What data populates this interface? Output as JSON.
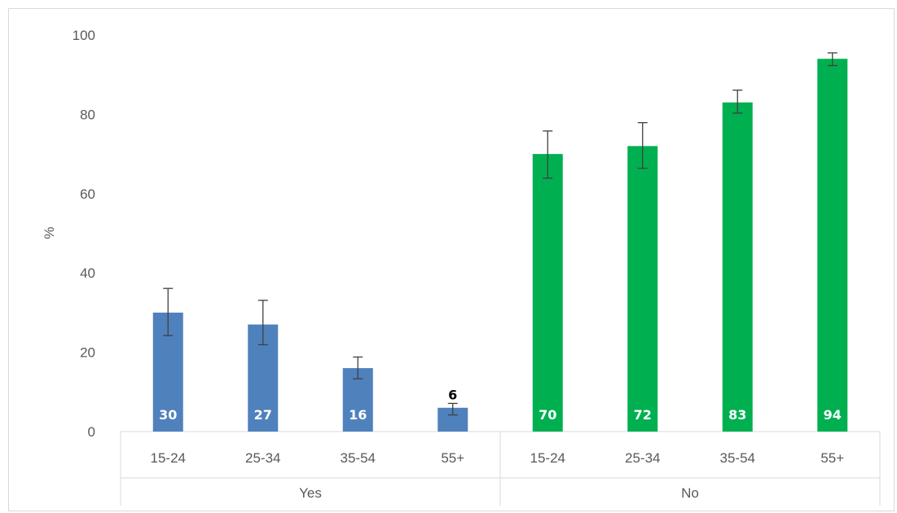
{
  "chart_data": {
    "type": "bar",
    "title": "",
    "xlabel": "",
    "ylabel": "%",
    "ylim": [
      0,
      100
    ],
    "yticks": [
      0,
      20,
      40,
      60,
      80,
      100
    ],
    "grid": false,
    "groups": [
      {
        "name": "Yes",
        "color": "#4f81bd",
        "categories": [
          "15-24",
          "25-34",
          "35-54",
          "55+"
        ],
        "values": [
          30,
          27,
          16,
          6
        ],
        "error_low": [
          24.2,
          21.9,
          13.3,
          4.2
        ],
        "error_high": [
          36.1,
          33.1,
          18.8,
          7.1
        ],
        "label_color": [
          "#ffffff",
          "#ffffff",
          "#ffffff",
          "#000000"
        ],
        "label_position": [
          "inside-base",
          "inside-base",
          "inside-base",
          "above"
        ]
      },
      {
        "name": "No",
        "color": "#00b050",
        "categories": [
          "15-24",
          "25-34",
          "35-54",
          "55+"
        ],
        "values": [
          70,
          72,
          83,
          94
        ],
        "error_low": [
          63.9,
          66.4,
          80.3,
          92.3
        ],
        "error_high": [
          75.8,
          77.9,
          86.1,
          95.5
        ],
        "label_color": [
          "#ffffff",
          "#ffffff",
          "#ffffff",
          "#ffffff"
        ],
        "label_position": [
          "inside-base",
          "inside-base",
          "inside-base",
          "inside-base"
        ]
      }
    ]
  }
}
